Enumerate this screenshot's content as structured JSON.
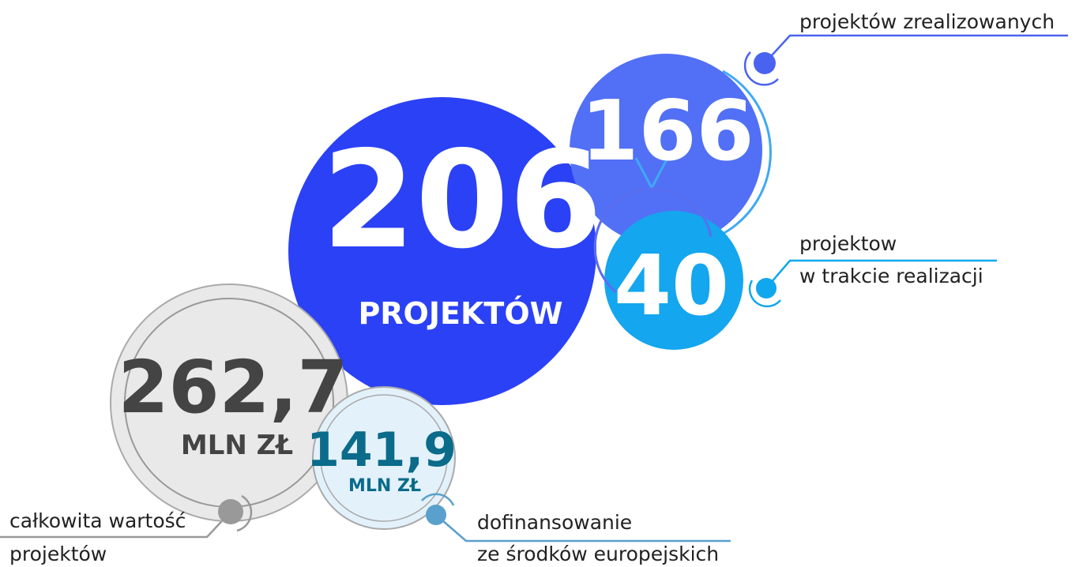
{
  "total": {
    "number": "206",
    "unit": "PROJEKTÓW"
  },
  "completed": {
    "number": "166",
    "label": "projektów zrealizowanych"
  },
  "in_progress": {
    "number": "40",
    "label_lines": [
      "projektow",
      "w trakcie realizacji"
    ]
  },
  "total_value": {
    "number": "262,7",
    "unit": "MLN ZŁ",
    "label_lines": [
      "całkowita wartość",
      "projektów"
    ]
  },
  "eu_funding": {
    "number": "141,9",
    "unit": "MLN ZŁ",
    "label_lines": [
      "dofinansowanie",
      "ze środków europejskich"
    ]
  }
}
